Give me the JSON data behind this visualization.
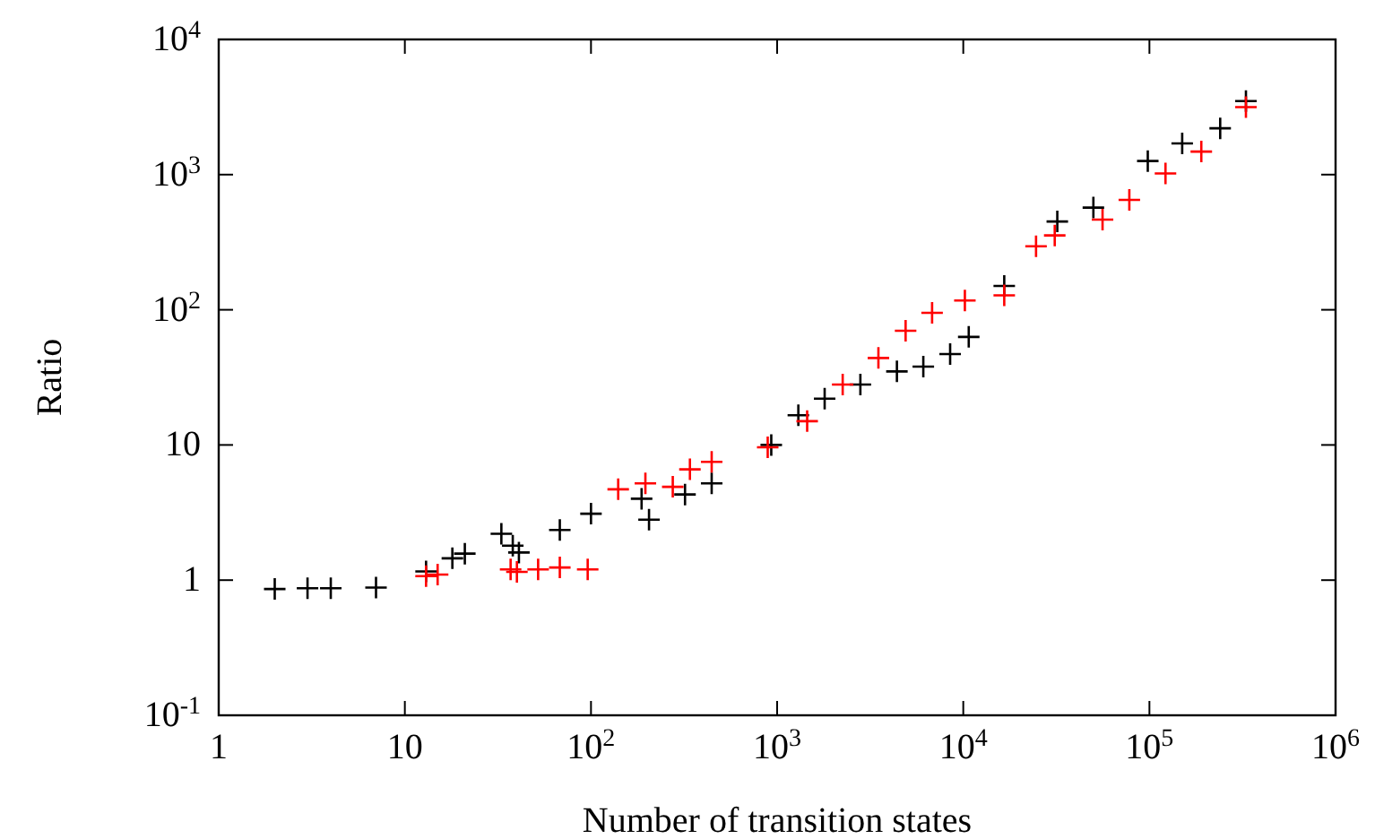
{
  "chart_data": {
    "type": "scatter",
    "xlabel": "Number of transition states",
    "ylabel": "Ratio",
    "log": "xy",
    "marker": "cross",
    "grid": false,
    "xlim": [
      1,
      1000000
    ],
    "ylim": [
      0.1,
      10000
    ],
    "xticks": [
      1,
      10,
      {
        "value": 100,
        "label": "10$^{2}$"
      },
      {
        "value": 1000,
        "label": "10$^{3}$"
      },
      {
        "value": 10000,
        "label": "10$^{4}$"
      },
      {
        "value": 100000,
        "label": "10$^{5}$"
      },
      {
        "value": 1000000,
        "label": "10$^{6}$"
      }
    ],
    "yticks": [
      {
        "value": 0.1,
        "label": "10$^{-1}$"
      },
      1,
      10,
      {
        "value": 100,
        "label": "10$^{2}$"
      },
      {
        "value": 1000,
        "label": "10$^{3}$"
      },
      {
        "value": 10000,
        "label": "10$^{4}$"
      }
    ],
    "series": [
      {
        "color": "#000000",
        "x": [
          2,
          3,
          4,
          7,
          13,
          18,
          21,
          33,
          38,
          41,
          68,
          100,
          187,
          205,
          320,
          445,
          930,
          1300,
          1800,
          2800,
          4400,
          6100,
          8500,
          10700,
          16600,
          32000,
          50000,
          98000,
          150000,
          240000,
          330000
        ],
        "values": [
          0.86,
          0.87,
          0.87,
          0.88,
          1.16,
          1.45,
          1.57,
          2.2,
          1.8,
          1.6,
          2.35,
          3.1,
          4.0,
          2.8,
          4.3,
          5.2,
          10,
          16.6,
          22,
          28,
          35,
          38,
          47,
          63,
          150,
          450,
          570,
          1260,
          1700,
          2200,
          3500
        ]
      },
      {
        "color": "#ff0000",
        "x": [
          13,
          15,
          37,
          40,
          52,
          68,
          96,
          140,
          196,
          275,
          340,
          445,
          890,
          1450,
          2250,
          3500,
          4900,
          6800,
          10200,
          16600,
          24600,
          31000,
          56000,
          78000,
          122000,
          190000,
          330000
        ],
        "values": [
          1.07,
          1.1,
          1.2,
          1.15,
          1.2,
          1.24,
          1.2,
          4.7,
          5.2,
          4.9,
          6.6,
          7.5,
          9.6,
          15,
          28,
          44,
          70,
          95,
          117,
          128,
          295,
          355,
          465,
          650,
          1020,
          1480,
          3160
        ]
      }
    ]
  }
}
